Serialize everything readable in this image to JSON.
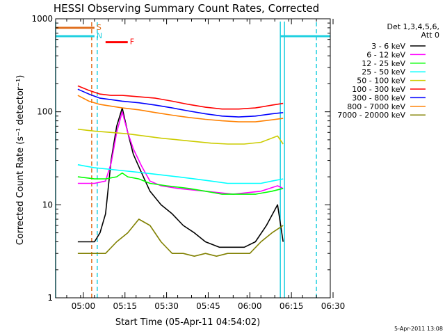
{
  "chart_data": {
    "type": "line",
    "title": "HESSI Observing Summary Count Rates, Corrected",
    "xlabel": "Start Time (05-Apr-11 04:54:02)",
    "ylabel": "Corrected Count Rate (s⁻¹ detector⁻¹)",
    "ylog": true,
    "ylim": [
      1,
      1000
    ],
    "xlim_minutes": [
      -4,
      95
    ],
    "xticks": [
      {
        "label": "05:00",
        "min": 6
      },
      {
        "label": "05:15",
        "min": 21
      },
      {
        "label": "05:30",
        "min": 36
      },
      {
        "label": "05:45",
        "min": 51
      },
      {
        "label": "06:00",
        "min": 66
      },
      {
        "label": "06:15",
        "min": 81
      },
      {
        "label": "06:30",
        "min": 96
      }
    ],
    "yticks": [
      {
        "label": "1",
        "value": 1
      },
      {
        "label": "10",
        "value": 10
      },
      {
        "label": "100",
        "value": 100
      },
      {
        "label": "1000",
        "value": 1000
      }
    ],
    "legend_header": [
      "Det 1,3,4,5,6,",
      "Att 0"
    ],
    "series": [
      {
        "name": "3 - 6 keV",
        "color": "#000000",
        "x": [
          4,
          10,
          12,
          14,
          16,
          18,
          20,
          22,
          24,
          27,
          30,
          34,
          38,
          42,
          46,
          50,
          55,
          60,
          64,
          68,
          72,
          76,
          78
        ],
        "y": [
          4,
          4,
          5,
          8,
          30,
          70,
          110,
          60,
          35,
          22,
          14,
          10,
          8,
          6,
          5,
          4,
          3.5,
          3.5,
          3.5,
          4,
          6,
          10,
          4
        ]
      },
      {
        "name": "6 - 12 keV",
        "color": "#ff00ff",
        "x": [
          4,
          10,
          14,
          16,
          18,
          20,
          22,
          24,
          27,
          30,
          34,
          40,
          50,
          60,
          70,
          76,
          78
        ],
        "y": [
          17,
          17,
          18,
          28,
          60,
          100,
          60,
          40,
          26,
          18,
          16,
          15,
          14,
          13,
          14,
          16,
          15
        ]
      },
      {
        "name": "12 - 25 keV",
        "color": "#00ff00",
        "x": [
          4,
          10,
          14,
          18,
          20,
          22,
          26,
          30,
          36,
          44,
          50,
          56,
          62,
          68,
          74,
          78
        ],
        "y": [
          20,
          19,
          19,
          20,
          22,
          20,
          19,
          17,
          16,
          15,
          14,
          13,
          13,
          13,
          14,
          15
        ]
      },
      {
        "name": "25 - 50 keV",
        "color": "#00ffff",
        "x": [
          4,
          10,
          16,
          22,
          28,
          34,
          40,
          46,
          52,
          58,
          64,
          70,
          74,
          78
        ],
        "y": [
          27,
          25,
          24,
          23,
          22,
          21,
          20,
          19,
          18,
          17,
          17,
          17,
          18,
          19
        ]
      },
      {
        "name": "50 - 100 keV",
        "color": "#cccc00",
        "x": [
          4,
          10,
          16,
          22,
          28,
          34,
          40,
          46,
          52,
          58,
          64,
          70,
          76,
          78
        ],
        "y": [
          65,
          62,
          60,
          58,
          55,
          52,
          50,
          48,
          46,
          45,
          45,
          47,
          55,
          45
        ]
      },
      {
        "name": "100 - 300 keV",
        "color": "#ff0000",
        "x": [
          4,
          8,
          12,
          16,
          20,
          26,
          32,
          38,
          44,
          50,
          56,
          62,
          68,
          74,
          78
        ],
        "y": [
          190,
          170,
          155,
          150,
          150,
          145,
          140,
          130,
          120,
          112,
          107,
          107,
          110,
          118,
          123
        ]
      },
      {
        "name": "300 - 800 keV",
        "color": "#0000ff",
        "x": [
          4,
          8,
          12,
          16,
          20,
          26,
          32,
          38,
          44,
          50,
          56,
          62,
          68,
          74,
          78
        ],
        "y": [
          175,
          155,
          140,
          135,
          130,
          125,
          118,
          110,
          102,
          95,
          90,
          88,
          90,
          95,
          98
        ]
      },
      {
        "name": "800 - 7000 keV",
        "color": "#ff8000",
        "x": [
          4,
          8,
          12,
          16,
          20,
          26,
          32,
          38,
          44,
          50,
          56,
          62,
          68,
          74,
          78
        ],
        "y": [
          150,
          130,
          120,
          115,
          110,
          105,
          98,
          92,
          87,
          83,
          80,
          78,
          78,
          82,
          85
        ]
      },
      {
        "name": "7000 - 20000 keV",
        "color": "#808000",
        "x": [
          4,
          10,
          14,
          18,
          22,
          26,
          30,
          34,
          38,
          42,
          46,
          50,
          54,
          58,
          62,
          66,
          70,
          74,
          78
        ],
        "y": [
          3,
          3,
          3,
          4,
          5,
          7,
          6,
          4,
          3,
          3,
          2.8,
          3,
          2.8,
          3,
          3,
          3,
          4,
          5,
          6
        ]
      }
    ],
    "segments": [
      {
        "label": "S",
        "color": "#e07020",
        "x1": -4,
        "x2": 10,
        "level": 800
      },
      {
        "label": "N",
        "color": "#20d0e0",
        "x1": -4,
        "x2": 10,
        "level": 650
      },
      {
        "label": "F",
        "color": "#ff0000",
        "x1": 14,
        "x2": 22,
        "level": 560
      },
      {
        "label": "",
        "color": "#20d0e0",
        "x1": 77,
        "x2": 95,
        "level": 650
      }
    ],
    "vlines": [
      {
        "min": -4,
        "color": "#20d0e0",
        "style": "solid"
      },
      {
        "min": 9,
        "color": "#e07020",
        "style": "dashed"
      },
      {
        "min": 11,
        "color": "#20d0e0",
        "style": "dashed"
      },
      {
        "min": 77,
        "color": "#20d0e0",
        "style": "solid"
      },
      {
        "min": 78.5,
        "color": "#20d0e0",
        "style": "solid"
      },
      {
        "min": 90,
        "color": "#20d0e0",
        "style": "dashed"
      }
    ],
    "footer": "5-Apr-2011 13:08"
  }
}
